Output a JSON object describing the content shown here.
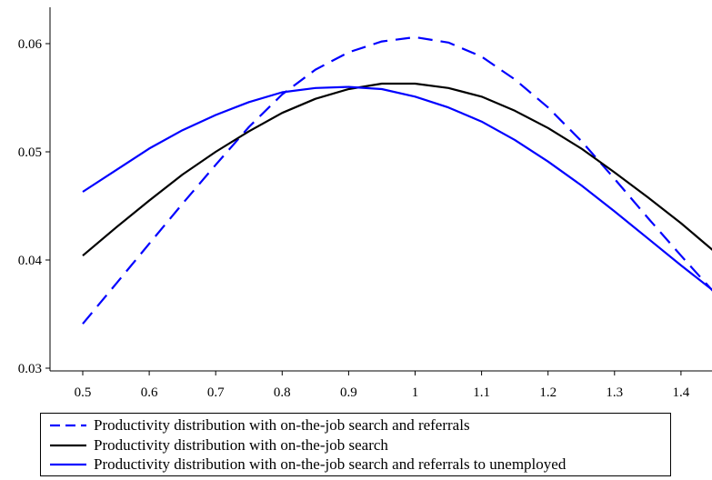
{
  "chart_data": {
    "type": "line",
    "title": "",
    "xlabel": "",
    "ylabel": "",
    "xlim": [
      0.5,
      1.45
    ],
    "ylim": [
      0.03,
      0.063
    ],
    "xticks": [
      0.5,
      0.6,
      0.7,
      0.8,
      0.9,
      1,
      1.1,
      1.2,
      1.3,
      1.4
    ],
    "xtick_labels": [
      "0.5",
      "0.6",
      "0.7",
      "0.8",
      "0.9",
      "1",
      "1.1",
      "1.2",
      "1.3",
      "1.4"
    ],
    "yticks": [
      0.03,
      0.04,
      0.05,
      0.06
    ],
    "ytick_labels": [
      "0.03",
      "0.04",
      "0.05",
      "0.06"
    ],
    "grid": false,
    "legend_position": "bottom",
    "x": [
      0.5,
      0.55,
      0.6,
      0.65,
      0.7,
      0.75,
      0.8,
      0.85,
      0.9,
      0.95,
      1.0,
      1.05,
      1.1,
      1.15,
      1.2,
      1.25,
      1.3,
      1.35,
      1.4,
      1.45
    ],
    "series": [
      {
        "name": "Productivity distribution with on-the-job search and referrals",
        "color": "#0000ff",
        "style": "dashed",
        "values": [
          0.0341,
          0.0378,
          0.0415,
          0.0452,
          0.0488,
          0.0523,
          0.0553,
          0.0576,
          0.0592,
          0.0602,
          0.0606,
          0.0601,
          0.0588,
          0.0567,
          0.0541,
          0.051,
          0.0475,
          0.0439,
          0.0404,
          0.037
        ]
      },
      {
        "name": "Productivity distribution with on-the-job search",
        "color": "#000000",
        "style": "solid",
        "values": [
          0.0404,
          0.043,
          0.0455,
          0.0479,
          0.05,
          0.0519,
          0.0536,
          0.0549,
          0.0558,
          0.0563,
          0.0563,
          0.0559,
          0.0551,
          0.0538,
          0.0522,
          0.0503,
          0.0481,
          0.0458,
          0.0434,
          0.0408
        ]
      },
      {
        "name": "Productivity distribution with on-the-job search and referrals to unemployed",
        "color": "#0000ff",
        "style": "solid",
        "values": [
          0.0463,
          0.0483,
          0.0503,
          0.052,
          0.0534,
          0.0546,
          0.0555,
          0.0559,
          0.056,
          0.0558,
          0.0551,
          0.0541,
          0.0528,
          0.0511,
          0.0491,
          0.0469,
          0.0445,
          0.042,
          0.0395,
          0.0371
        ]
      }
    ]
  }
}
